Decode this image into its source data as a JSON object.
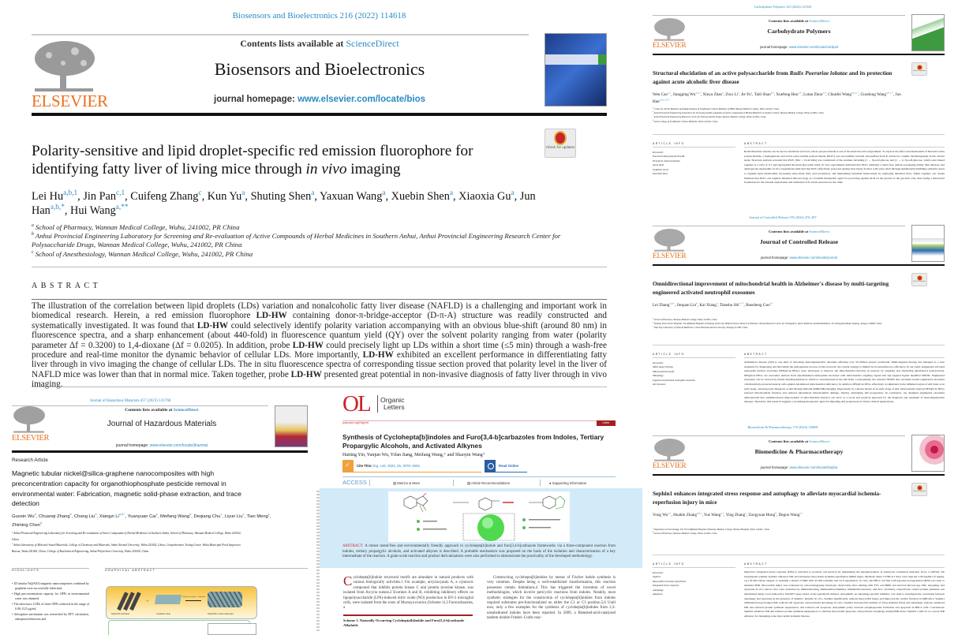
{
  "colors": {
    "elsevier_orange": "#e9711c",
    "link_blue": "#2a8bc2",
    "acs_red": "#c8242a",
    "ol_band": "#d3ebf8"
  },
  "common": {
    "publisher": "ELSEVIER",
    "contents_prefix": "Contents lists available at ",
    "sciencedirect": "ScienceDirect",
    "homepage_label": "journal homepage: ",
    "check_updates": "Check for updates",
    "article_info": "ARTICLE INFO",
    "abstract": "ABSTRACT"
  },
  "p1": {
    "citation": "Biosensors and Bioelectronics 216 (2022) 114618",
    "journal": "Biosensors and Bioelectronics",
    "homepage_url": "www.elsevier.com/locate/bios",
    "title_a": "Polarity-sensitive and lipid droplet-specific red emission fluorophore for identifying fatty liver of living mice through ",
    "title_i": "in vivo",
    "title_b": " imaging",
    "authors": [
      {
        "n": "Lei Hu",
        "s": "a,b,1"
      },
      {
        "n": "Jin Pan",
        "s": "c,1"
      },
      {
        "n": "Cuifeng Zhang",
        "s": "c"
      },
      {
        "n": "Kun Yu",
        "s": "a"
      },
      {
        "n": "Shuting Shen",
        "s": "a"
      },
      {
        "n": "Yaxuan Wang",
        "s": "a"
      },
      {
        "n": "Xuebin Shen",
        "s": "a"
      },
      {
        "n": "Xiaoxia Gu",
        "s": "a"
      },
      {
        "n": "Jun Han",
        "s": "a,b,*"
      },
      {
        "n": "Hui Wang",
        "s": "a,**"
      }
    ],
    "affiliations": [
      {
        "s": "a",
        "t": "School of Pharmacy, Wannan Medical College, Wuhu, 241002, PR China"
      },
      {
        "s": "b",
        "t": "Anhui Provincial Engineering Laboratory for Screening and Re-evaluation of Active Compounds of Herbal Medicines in Southern Anhui, Anhui Provincial Engineering Research Center for Polysaccharide Drugs, Wannan Medical College, Wuhu, 241002, PR China"
      },
      {
        "s": "c",
        "t": "School of Anesthesiology, Wannan Medical College, Wuhu, 241002, PR China"
      }
    ],
    "abstract_heading": "ABSTRACT",
    "abstract": "The illustration of the correlation between lipid droplets (LDs) variation and nonalcoholic fatty liver disease (NAFLD) is a challenging and important work in biomedical research. Herein, a red emission fluorophore LD-HW containing donor-π-bridge-acceptor (D-π-A) structure was readily constructed and systematically investigated. It was found that LD-HW could selectively identify polarity variation accompanying with an obvious blue-shift (around 80 nm) in fluorescence spectra, and a sharp enhancement (about 440-fold) in fluorescence quantum yield (QY) over the solvent polarity ranging from water (polarity parameter Δf = 0.3200) to 1,4-dioxane (Δf = 0.0205). In addition, probe LD-HW could precisely light up LDs within a short time (≤5 min) through a wash-free procedure and real-time monitor the dynamic behavior of cellular LDs. More importantly, LD-HW exhibited an excellent performance in differentiating fatty liver through in vivo imaging the change of cellular LDs. The in situ fluorescence spectra of corresponding tissue section proved that polarity level in the liver of NAFLD mice was lower than that in normal mice. Taken together, probe LD-HW presented great potential in non-invasive diagnosis of fatty liver through in vivo imaging."
  },
  "p2": {
    "citation": "Journal of Hazardous Materials 457 (2023) 131768",
    "journal": "Journal of Hazardous Materials",
    "homepage_url": "www.elsevier.com/locate/jhazmat",
    "article_type": "Research Article",
    "title": "Magnetic tubular nickel@silica-graphene nanocomposites with high preconcentration capacity for organothiophosphate pesticide removal in environmental water: Fabrication, magnetic solid-phase extraction, and trace detection",
    "authors": [
      {
        "n": "Guoxin Wu",
        "s": "a"
      },
      {
        "n": "Chuanqi Zhang",
        "s": "b"
      },
      {
        "n": "Chang Liu",
        "s": "a"
      },
      {
        "n": "Xiangzi Li",
        "s": "a,d,*"
      },
      {
        "n": "Yuanyuan Cai",
        "s": "c"
      },
      {
        "n": "Meifang Wang",
        "s": "a"
      },
      {
        "n": "Deqiang Chu",
        "s": "c"
      },
      {
        "n": "Liyun Liu",
        "s": "c"
      },
      {
        "n": "Tian Meng",
        "s": "c"
      },
      {
        "n": "Zhiming Chen",
        "s": "d"
      }
    ],
    "affiliations": [
      {
        "s": "a",
        "t": "Anhui Provincial Engineering Laboratory for Screening and Re-evaluation of Active Compounds of Herbal Medicines in Southern Anhui, School of Pharmacy, Wannan Medical College, Wuhu 241002, China"
      },
      {
        "s": "b",
        "t": "Anhui Laboratory of Molecule-based Materials, College of Chemistry and Materials, Anhui Normal University, Wuhu 241002, China; Comprehensive Testing Center, Wuhu Municipal Food Inspection Bureau, Wuhu 241000, China; College of Biochemical Engineering, Anhui Polytechnic University, Wuhu 241000, China"
      }
    ],
    "highlights_heading": "HIGHLIGHTS",
    "graphical_heading": "GRAPHICAL ABSTRACT",
    "highlights": [
      "1D tubular Ni@SiO2 magnetic nanocomposites combined by graphene were successfully fabricated.",
      "High preconcentration capacity for OPPs in environmental water was obtained.",
      "The ultra-trace LODs of three OPPs achieved in the range of 0.08–0.25 μg/mL.",
      "Adsorption mechanism was researched by DFT calculation, adsorption behaviors and"
    ],
    "graphical_labels": [
      "Ni@SiO2 nanotubes",
      "Graphene oxide",
      "Hydrazine hydrate / Ammonia",
      "Ni@SiO2-G nanocomposites"
    ]
  },
  "p3": {
    "logo": "OL",
    "journal_line1": "Organic",
    "journal_line2": "Letters",
    "doi": "pubs.acs.org/OrgLett",
    "badge": "Letter",
    "title": "Synthesis of Cyclohepta[b]indoles and Furo[3,4-b]carbazoles from Indoles, Tertiary Propargylic Alcohols, and Activated Alkynes",
    "authors": "Haiting Yin, Yunjun Wu, Yifan Jiang, Meifang Wang,",
    "authors_tail": " and Shaoyin Wang",
    "cite_label": "Cite This: ",
    "cite": "Org. Lett. 2023, 25, 3078−3082",
    "read_online": "Read Online",
    "access": "ACCESS",
    "metrics": "Metrics & More",
    "recommendations": "Article Recommendations",
    "supporting": "Supporting Information",
    "abstract_label": "ABSTRACT:",
    "abstract": " A robust metal-free and environmentally friendly approach to cyclohepta[b]indole and furo[3,4-b]carbazole frameworks via a three-component reaction from indoles, tertiary propargylic alcohols, and activated alkynes is described. A probable mechanism was proposed on the basis of the isolation and characterization of a key intermediate of the reaction. A gram-scale reaction and product derivatizations were also performed to demonstrate the practicality of the developed methodology.",
    "body_dropcap": "C",
    "body_col1": "yclohepta[b]indole structural motifs are abundant in natural products with various biologically activities.1 For example, arcyriacyanin A, a cytotoxic compound that inhibits protein kinase C and protein tyrosine kinase, was isolated from Arcyria nutans.2 Exotines A and B, exhibiting inhibitory effects on lipopolysaccharide (LPS)-induced nitric oxide (NO) production in BV-2 microglial cells, were isolated from the roots of Murraya exotica (Scheme 1).3 Furocarbazoles, a",
    "scheme_caption": "Scheme 1. Naturally Occurring Cyclohepta[b]indole and Furo[3,4-b]carbazole Alkaloids",
    "body_col2": "Constructing cyclohepta[b]indoles by means of Fischer indole synthesis is very common. Despite being a well-established transformation, this reaction possesses certain limitations.4 This has triggered the invention of novel methodologies, which involve pericyclic reactions from indoles. Notably, most synthetic strategies for the construction of cyclohepta[b]indoles from indoles required substrates pre-functionalized on either the C2 or C3 position.5,6 Until now, only a few examples for the synthesis of cyclohepta[b]indoles from 2,3-unsubstituted indoles have been reported. In 2009, a Brønsted-acid-catalyzed tandem double Friedel−Crafts reac-"
  },
  "p4": {
    "citation": "Carbohydrate Polymers 325 (2024) 121545",
    "journal": "Carbohydrate Polymers",
    "homepage_url": "www.elsevier.com/locate/carbpol",
    "title_a": "Structural elucidation of an active polysaccharide from ",
    "title_i": "Radix Puerariae lobatae",
    "title_b": " and its protection against acute alcoholic liver disease",
    "authors": [
      {
        "n": "Wen Cao",
        "s": "a,1"
      },
      {
        "n": "Jiangping Wu",
        "s": "a,b,1"
      },
      {
        "n": "Xinya Zhao",
        "s": "a"
      },
      {
        "n": "Zixu Li",
        "s": "a"
      },
      {
        "n": "Jie Yu",
        "s": "a"
      },
      {
        "n": "Taili Shao",
        "s": "a,b"
      },
      {
        "n": "Xuefeng Hou",
        "s": "a,b"
      },
      {
        "n": "Lutan Zhou",
        "s": "a,b"
      },
      {
        "n": "Chunfei Wang",
        "s": "a,b,c,*"
      },
      {
        "n": "Guodong Wang",
        "s": "a,b,c,*"
      },
      {
        "n": "Jun Han",
        "s": "a,b,c,d,**"
      }
    ],
    "affiliations": [
      {
        "s": "a",
        "t": "Center for Xin'an Medicine and Modernization of Traditional Chinese Medicine of IHM, Wannan Medical College, Wuhu 241002, China"
      },
      {
        "s": "b",
        "t": "Anhui Provincial Engineering Laboratory for Screening and Re-evaluation of Active Compounds of Herbal Medicines in Southern Anhui, Wannan Medical College, Wuhu 241002, China"
      },
      {
        "s": "c",
        "t": "Anhui Provincial Engineering Research Center for Polysaccharide Drugs, Wannan Medical College, Wuhu 241002, China"
      },
      {
        "s": "d",
        "t": "Anhui College of Traditional Chinese Medicine, Wuhu 241002, China"
      }
    ],
    "keywords": [
      "Keywords:",
      "Pueraria lobata polysaccharide",
      "Structural characterization",
      "Acute ALD",
      "Oxidative stress",
      "Intestinal flora"
    ],
    "abstract": "Radix Puerariae lobatae can be used as medicine and food, whose polysaccharide is one of the main bioactive ingredients. To explore the effect and mechanism of Pueraria lobata polysaccharide, a homogeneous and novel water-soluble polysaccharide (PLP1) was successfully isolated and purified from P. lobata for column chromatography in the current study. Structure analysis revealed that PLP1 (Mw = 10.42 kDa) was constituted of the residues including (1 → 6)-α-D-glucose and (1 → 4, 6)-α-D-glucose, which were linked together at a ratio of 5:1 and represented the main glycosidic units. In vitro experiments indicated that PLP1 exhibited a better free radical-scavenging ability than amylose and amylopectin, meanwhile in vivo experiments indicated that PLP1 effectively protected against liver injury in mice with acute ALD through significantly inhibiting oxidative stress to regulate lipid metabolism, increasing short-chain fatty acid production, and maintaining intestinal homeostasis by regulating intestinal flora. Taken together, our results illustrate that PLP1 can regulate intestinal microecology as a feasible therapeutic agent for protecting against ALD on the ground of the gut-liver axis, thus laying a theoretical foundation for the rational exploitation and utilization of P. lobata resources in the clinic."
  },
  "p5": {
    "citation": "Journal of Controlled Release 376 (2024) 470–487",
    "journal": "Journal of Controlled Release",
    "homepage_url": "www.elsevier.com/locate/jconrel",
    "title": "Omnidirectional improvement of mitochondrial health in Alzheimer's disease by multi-targeting engineered activated neutrophil exosomes",
    "authors": [
      {
        "n": "Lei Zhang",
        "s": "a,b,c"
      },
      {
        "n": "Jinquan Lin",
        "s": "b"
      },
      {
        "n": "Kai Xiang",
        "s": "a"
      },
      {
        "n": "Tianshu Shi",
        "s": "b,**"
      },
      {
        "n": "Baosheng Guo",
        "s": "b,*"
      }
    ],
    "affiliations": [
      {
        "s": "a",
        "t": "School of Pharmacy, Wannan Medical College, Wuhu 241002, China"
      },
      {
        "s": "b",
        "t": "Nanjing Drum Tower Hospital, The Affiliated Hospital of Nanjing University Medical School, Branch of National Clinical Research Center for Orthopedics, Sports Medicine and Rehabilitation, 321 Zhongshan Road, Nanjing, Jiangsu 210008, China"
      },
      {
        "s": "c",
        "t": "State Key Laboratory of Natural Medicines, China Pharmaceutical University, Nanjing 211198, China"
      }
    ],
    "keywords": [
      "Keywords:",
      "Multi-target therapy",
      "Mitochondrial health",
      "Mitophagy",
      "Engineered activated neutrophil exosomes",
      "Aβ clearance"
    ],
    "abstract": "Alzheimer's disease (AD) is one kind of devasting neurodegenerative disorders affecting over 50 million people worldwide. Multi-targeted therapy has emerged as a new treatment for diagnosing and alleviating the pathogenesis process of AD, however, the current strategy is limited by its unsatisfactory efficiency. In our study, engineered activated neutrophil derived exosomes (MN@Cur-NExo) were developed to improve the mitochondrial function in neurons by targeting and alleviating Aβ-induced neurotoxicity. MN@Cur-NExo are exosomes derived from Aβ-stimulated neutrophils decorated with mitochondria targeting ligand and Aβ targeted ligand modified SPION. Engineered exosomes can be cleaved by matrix metallopeptidase-9, which is overexpressed in the AD brain. Consequently, the released SPION and curcumin loaded engineered exosomes collaboratively protected neuron cells against Aβ-induced mitochondrial deficiency. In addition, MN@Cur-NExo effectively accumulated in the inflamed region of AD brain at an early stage, allowing early diagnosis of AD through bimodal (MRI/NIR) imaging. Importantly, in a mouse model of an early stage of AD, intravenously injected MN@Cur-NExo restored mitochondrial function and reduced Aβ-induced mitochondrial damage, thereby attenuating AD progression. In conclusion, our designed engineered exosomes demonstrated that omnidirectional improvement of mitochondrial function can serve as a novel and practical approach for the diagnosis and treatment of neurodegenerative diseases. Therefore, this research suggests a promising therapeutic agent for impeding AD progression for future clinical applications."
  },
  "p6": {
    "citation": "Biomedicine & Pharmacotherapy 176 (2024) 116869",
    "journal": "Biomedicine & Pharmacotherapy",
    "homepage_url": "www.elsevier.com/locate/biopha",
    "title": "Sephin1 enhances integrated stress response and autophagy to alleviate myocardial ischemia-reperfusion injury in mice",
    "authors": [
      {
        "n": "Yong Wu",
        "s": "a,1"
      },
      {
        "n": "Huabin Zhang",
        "s": "a,b,1"
      },
      {
        "n": "Yue Wang",
        "s": "a,1"
      },
      {
        "n": "Ying Zhang",
        "s": "a"
      },
      {
        "n": "Zongyuan Hong",
        "s": "b"
      },
      {
        "n": "Deguo Wang",
        "s": "a,*"
      }
    ],
    "affiliations": [
      {
        "s": "a",
        "t": "Department of Gerontology, The First Affiliated Hospital of Wannan Medical College, Yijishan Hospital, Wuhu 241001, China"
      },
      {
        "s": "b",
        "t": "School of Pharmacy, Wannan Medical College, Wuhu 241002, China"
      }
    ],
    "keywords": [
      "Keywords:",
      "Sephin1",
      "Myocardial ischemia reperfusion",
      "Integrated stress response",
      "Autophagy",
      "Apoptosis"
    ],
    "abstract": "Objective: Integrated stress response (ISR) is activated to promote cell survival by maintaining the phosphorylation of eukaryotic translation initiation factor 2 (eIF2α). We investigated whether Sephin1 enhances ISR and attenuates myocardial ischemia-reperfusion (MIR) injury. Methods: Male C57BL/6 J mice were injected with Sephin1 (5 mg/kg, i.p.) 30 min before surgery to establish a model of MIR with 45 min ischemia and 24 h reperfusion. In vitro, the H9C2 cell line with hypoxia-reoxygenation (H/R) was used to simulate MIR. Myocardial injury was evaluated by echocardiography, histologic observation after staining with TTC and H&E and electron microscopy. ISR, autophagy and apoptosis in vivo and in vitro were evaluated by immunoblotting, immunohistochemistry, immunofluorescence, and flow cytometry, respectively. Global protein synthesis was determined using a non-radioactive SUnSET assay based on the puromycin method. Autophinib, an autophagy-specific inhibitor, was used to investigate the correlation between autophagy and apoptosis in the presence of Sephin1. Results: In vivo, Sephin1 significantly reduced myocardial injury and improved the cardiac function in MIR mice. Sephin1 administration prolonged ISR, reduced cell apoptosis, and promoted autophagy. In vitro, Sephin1 increased the number of stress granules (SGs) and autophagic vesicles, enhanced ISR and relieved protein synthesis suppression, and reduced cell apoptosis. Autophinib partly reversed autophagosome formation and apoptosis in H9C2 cells. Conclusions: Sephin1 enhances ISR and relieves protein synthesis suppression, to alleviate myocardial apoptosis, and promotes autophagy during MIR stress. Sephin1 could act as a novel ISR enhancer for managing acute myocardial ischemic disease."
  }
}
